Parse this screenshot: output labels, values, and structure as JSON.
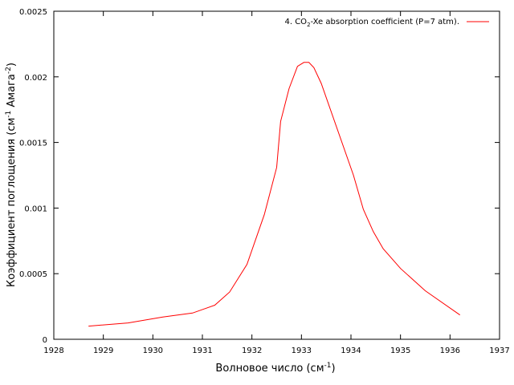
{
  "chart_data": {
    "type": "line",
    "xlabel_main": "Волновое число (см",
    "xlabel_sup": "-1",
    "xlabel_tail": ")",
    "ylabel_main": "Коэффициент поглощения (см",
    "ylabel_sup1": "-1",
    "ylabel_mid": " Амага",
    "ylabel_sup2": "-2",
    "ylabel_tail": ")",
    "xlim": [
      1928,
      1937
    ],
    "ylim": [
      0,
      0.0025
    ],
    "x_ticks": [
      1928,
      1929,
      1930,
      1931,
      1932,
      1933,
      1934,
      1935,
      1936,
      1937
    ],
    "y_ticks": [
      0,
      0.0005,
      0.001,
      0.0015,
      0.002,
      0.0025
    ],
    "y_tick_labels": [
      "0",
      "0.0005",
      "0.001",
      "0.0015",
      "0.002",
      "0.0025"
    ],
    "grid": false,
    "legend_position": "top-right",
    "series": [
      {
        "legend_prefix": "4. CO",
        "legend_sub": "2",
        "legend_suffix": "-Xe absorption coefficient (P=7 atm).",
        "color": "#ff0000",
        "x": [
          1928.7,
          1929.5,
          1930.2,
          1930.8,
          1931.25,
          1931.55,
          1931.9,
          1932.25,
          1932.5,
          1932.58,
          1932.75,
          1932.92,
          1933.05,
          1933.15,
          1933.25,
          1933.4,
          1934.05,
          1934.25,
          1934.45,
          1934.65,
          1935.0,
          1935.5,
          1936.2
        ],
        "y": [
          0.0001,
          0.000125,
          0.00017,
          0.0002,
          0.00026,
          0.00036,
          0.00057,
          0.00095,
          0.00131,
          0.00166,
          0.00191,
          0.00208,
          0.00211,
          0.00211,
          0.00207,
          0.00195,
          0.00125,
          0.00099,
          0.00082,
          0.00069,
          0.00054,
          0.00037,
          0.000185
        ]
      }
    ]
  }
}
